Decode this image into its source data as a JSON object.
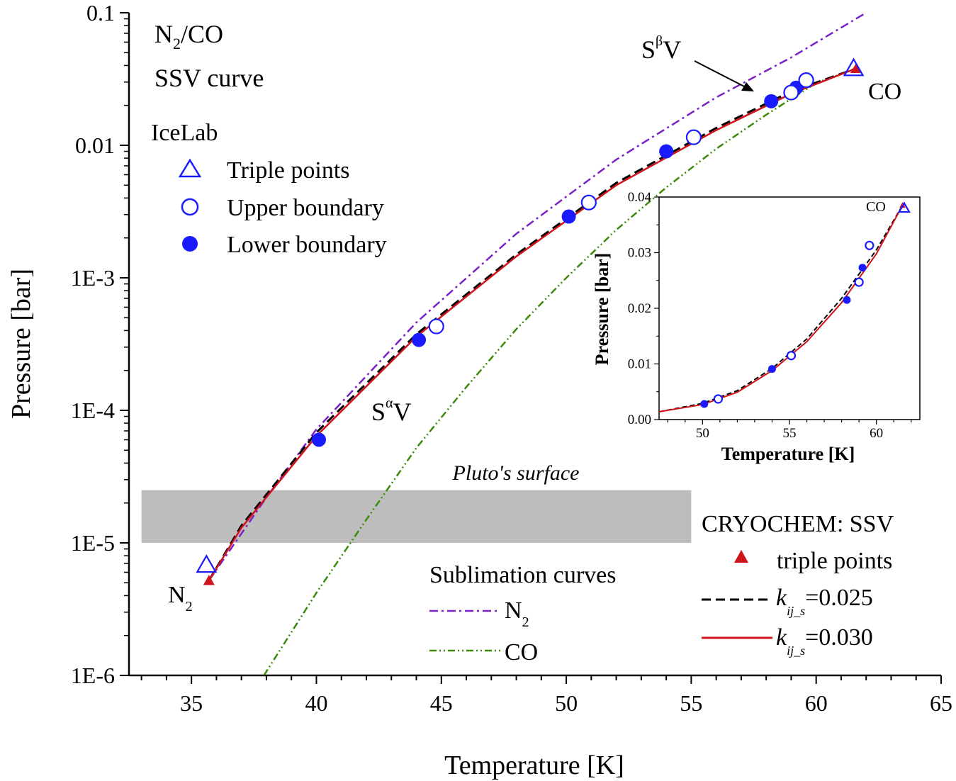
{
  "chart_data": [
    {
      "type": "line",
      "title": "N2/CO",
      "title_main": "N",
      "title_sub": "2",
      "title_rest": "/CO",
      "subtitle": "SSV curve",
      "xlabel": "Temperature [K]",
      "ylabel": "Pressure [bar]",
      "xlim": [
        32.5,
        65
      ],
      "ylim": [
        1e-06,
        0.1
      ],
      "yscale": "log",
      "x_ticks": [
        35,
        40,
        45,
        50,
        55,
        60,
        65
      ],
      "y_tick_labels": [
        "0.1",
        "0.01",
        "1E-3",
        "1E-4",
        "1E-5",
        "1E-6"
      ],
      "y_ticks": [
        0.1,
        0.01,
        0.001,
        0.0001,
        1e-05,
        1e-06
      ],
      "shaded_band": {
        "label": "Pluto's surface",
        "x": [
          33,
          55
        ],
        "y": [
          1e-05,
          2.5e-05
        ],
        "color": "#bdbdbd"
      },
      "annotations": {
        "s_beta_v": {
          "main": "S",
          "sup": "β",
          "rest": "V"
        },
        "s_alpha_v": {
          "main": "S",
          "sup": "α",
          "rest": "V"
        },
        "n2_label": {
          "main": "N",
          "sub": "2"
        },
        "co_label": "CO"
      },
      "legend_icelab": {
        "heading": "IceLab",
        "items": [
          "Triple points",
          "Upper boundary",
          "Lower boundary"
        ]
      },
      "legend_sublimation": {
        "heading": "Sublimation curves",
        "n2": {
          "main": "N",
          "sub": "2"
        },
        "co": "CO"
      },
      "legend_cryochem": {
        "heading": "CRYOCHEM: SSV",
        "triple": "triple points",
        "k_main": "k",
        "k_sub": "ij_s",
        "k1_value": "=0.025",
        "k2_value": "=0.030"
      },
      "colors": {
        "data_points": "#1a1aff",
        "ssv_030": "#d0141c",
        "ssv_025": "#000000",
        "n2_sublimation": "#7a22c8",
        "co_sublimation": "#3c8a0c",
        "triple_cryochem": "#d0141c"
      },
      "series": [
        {
          "name": "Triple points",
          "marker": "open-triangle",
          "x": [
            35.6,
            61.5
          ],
          "y": [
            6.8e-06,
            0.038
          ]
        },
        {
          "name": "Upper boundary",
          "marker": "open-circle",
          "x": [
            44.8,
            50.9,
            55.1,
            59.0,
            59.6
          ],
          "y": [
            0.00043,
            0.0037,
            0.0115,
            0.025,
            0.031
          ]
        },
        {
          "name": "Lower boundary",
          "marker": "filled-circle",
          "x": [
            40.1,
            44.1,
            50.1,
            54.0,
            58.2,
            59.2
          ],
          "y": [
            6e-05,
            0.00034,
            0.0029,
            0.009,
            0.0215,
            0.0272
          ]
        },
        {
          "name": "triple points",
          "marker": "filled-triangle",
          "x": [
            35.7,
            61.6
          ],
          "y": [
            5.2e-06,
            0.038
          ]
        },
        {
          "name": "=0.025",
          "line": "dashed",
          "x": [
            35.7,
            37,
            40,
            44,
            48,
            52,
            56,
            59,
            61.6
          ],
          "y": [
            5.2e-06,
            1.35e-05,
            6.8e-05,
            0.000375,
            0.0015,
            0.0052,
            0.0135,
            0.0255,
            0.038
          ]
        },
        {
          "name": "=0.030",
          "line": "solid",
          "x": [
            35.7,
            37,
            40,
            44,
            48,
            52,
            56,
            59,
            61.6
          ],
          "y": [
            5.2e-06,
            1.3e-05,
            6.4e-05,
            0.00036,
            0.00145,
            0.005,
            0.013,
            0.0245,
            0.038
          ]
        },
        {
          "name": "N2",
          "line": "dash-dot",
          "x": [
            35.7,
            38,
            40,
            44,
            48,
            52,
            56,
            59,
            62
          ],
          "y": [
            5.2e-06,
            2.2e-05,
            7.2e-05,
            0.00046,
            0.00215,
            0.0078,
            0.023,
            0.046,
            0.1
          ]
        },
        {
          "name": "CO",
          "line": "dash-dot-dot",
          "x": [
            37.9,
            40,
            42,
            44,
            46,
            48,
            50,
            52,
            54,
            56,
            58,
            60,
            61.6
          ],
          "y": [
            1e-06,
            4.2e-06,
            1.5e-05,
            5.2e-05,
            0.00015,
            0.00041,
            0.001,
            0.0023,
            0.0048,
            0.0094,
            0.017,
            0.0295,
            0.038
          ]
        }
      ]
    },
    {
      "type": "line",
      "title": "",
      "xlabel": "Temperature [K]",
      "ylabel": "Pressure [bar]",
      "xlim": [
        47.5,
        62.5
      ],
      "ylim": [
        0,
        0.04
      ],
      "x_ticks": [
        50,
        55,
        60
      ],
      "y_ticks": [
        0.0,
        0.01,
        0.02,
        0.03,
        0.04
      ],
      "y_tick_labels": [
        "0.00",
        "0.01",
        "0.02",
        "0.03",
        "0.04"
      ],
      "co_label": "CO",
      "series": [
        {
          "name": "Upper boundary",
          "marker": "open-circle",
          "x": [
            50.9,
            55.1,
            59.0,
            59.6
          ],
          "y": [
            0.0037,
            0.0115,
            0.0247,
            0.0313
          ]
        },
        {
          "name": "Lower boundary",
          "marker": "filled-circle",
          "x": [
            50.1,
            54.0,
            58.3,
            59.2
          ],
          "y": [
            0.0028,
            0.0091,
            0.0215,
            0.0273
          ]
        },
        {
          "name": "triple points",
          "marker": "filled-triangle",
          "x": [
            61.5
          ],
          "y": [
            0.0385
          ]
        },
        {
          "name": "Triple points",
          "marker": "open-triangle",
          "x": [
            61.6
          ],
          "y": [
            0.038
          ]
        },
        {
          "name": "=0.025",
          "line": "dashed",
          "x": [
            47.5,
            50,
            52,
            54,
            56,
            58,
            60,
            61.5
          ],
          "y": [
            0.0014,
            0.0029,
            0.0052,
            0.0092,
            0.0145,
            0.0218,
            0.0305,
            0.0385
          ]
        },
        {
          "name": "=0.030",
          "line": "solid",
          "x": [
            47.5,
            50,
            52,
            54,
            56,
            58,
            60,
            61.5
          ],
          "y": [
            0.0014,
            0.0027,
            0.0049,
            0.0088,
            0.014,
            0.021,
            0.0298,
            0.0385
          ]
        }
      ]
    }
  ]
}
